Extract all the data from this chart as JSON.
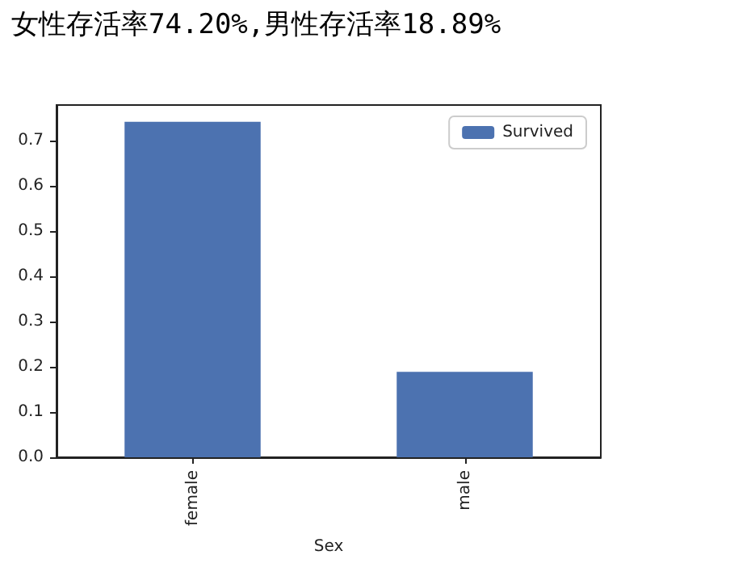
{
  "chart_data": {
    "type": "bar",
    "title": "女性存活率74.20%,男性存活率18.89%",
    "xlabel": "Sex",
    "categories": [
      "female",
      "male"
    ],
    "series": [
      {
        "name": "Survived",
        "color": "#4c72b0",
        "values": [
          0.742,
          0.189
        ]
      }
    ],
    "ylim": [
      0,
      0.779
    ],
    "yticks": [
      {
        "value": 0,
        "label": "0.0"
      },
      0.1,
      0.2,
      0.3,
      0.4,
      0.5,
      0.6,
      0.7
    ],
    "grid": false,
    "legend": "top right"
  }
}
